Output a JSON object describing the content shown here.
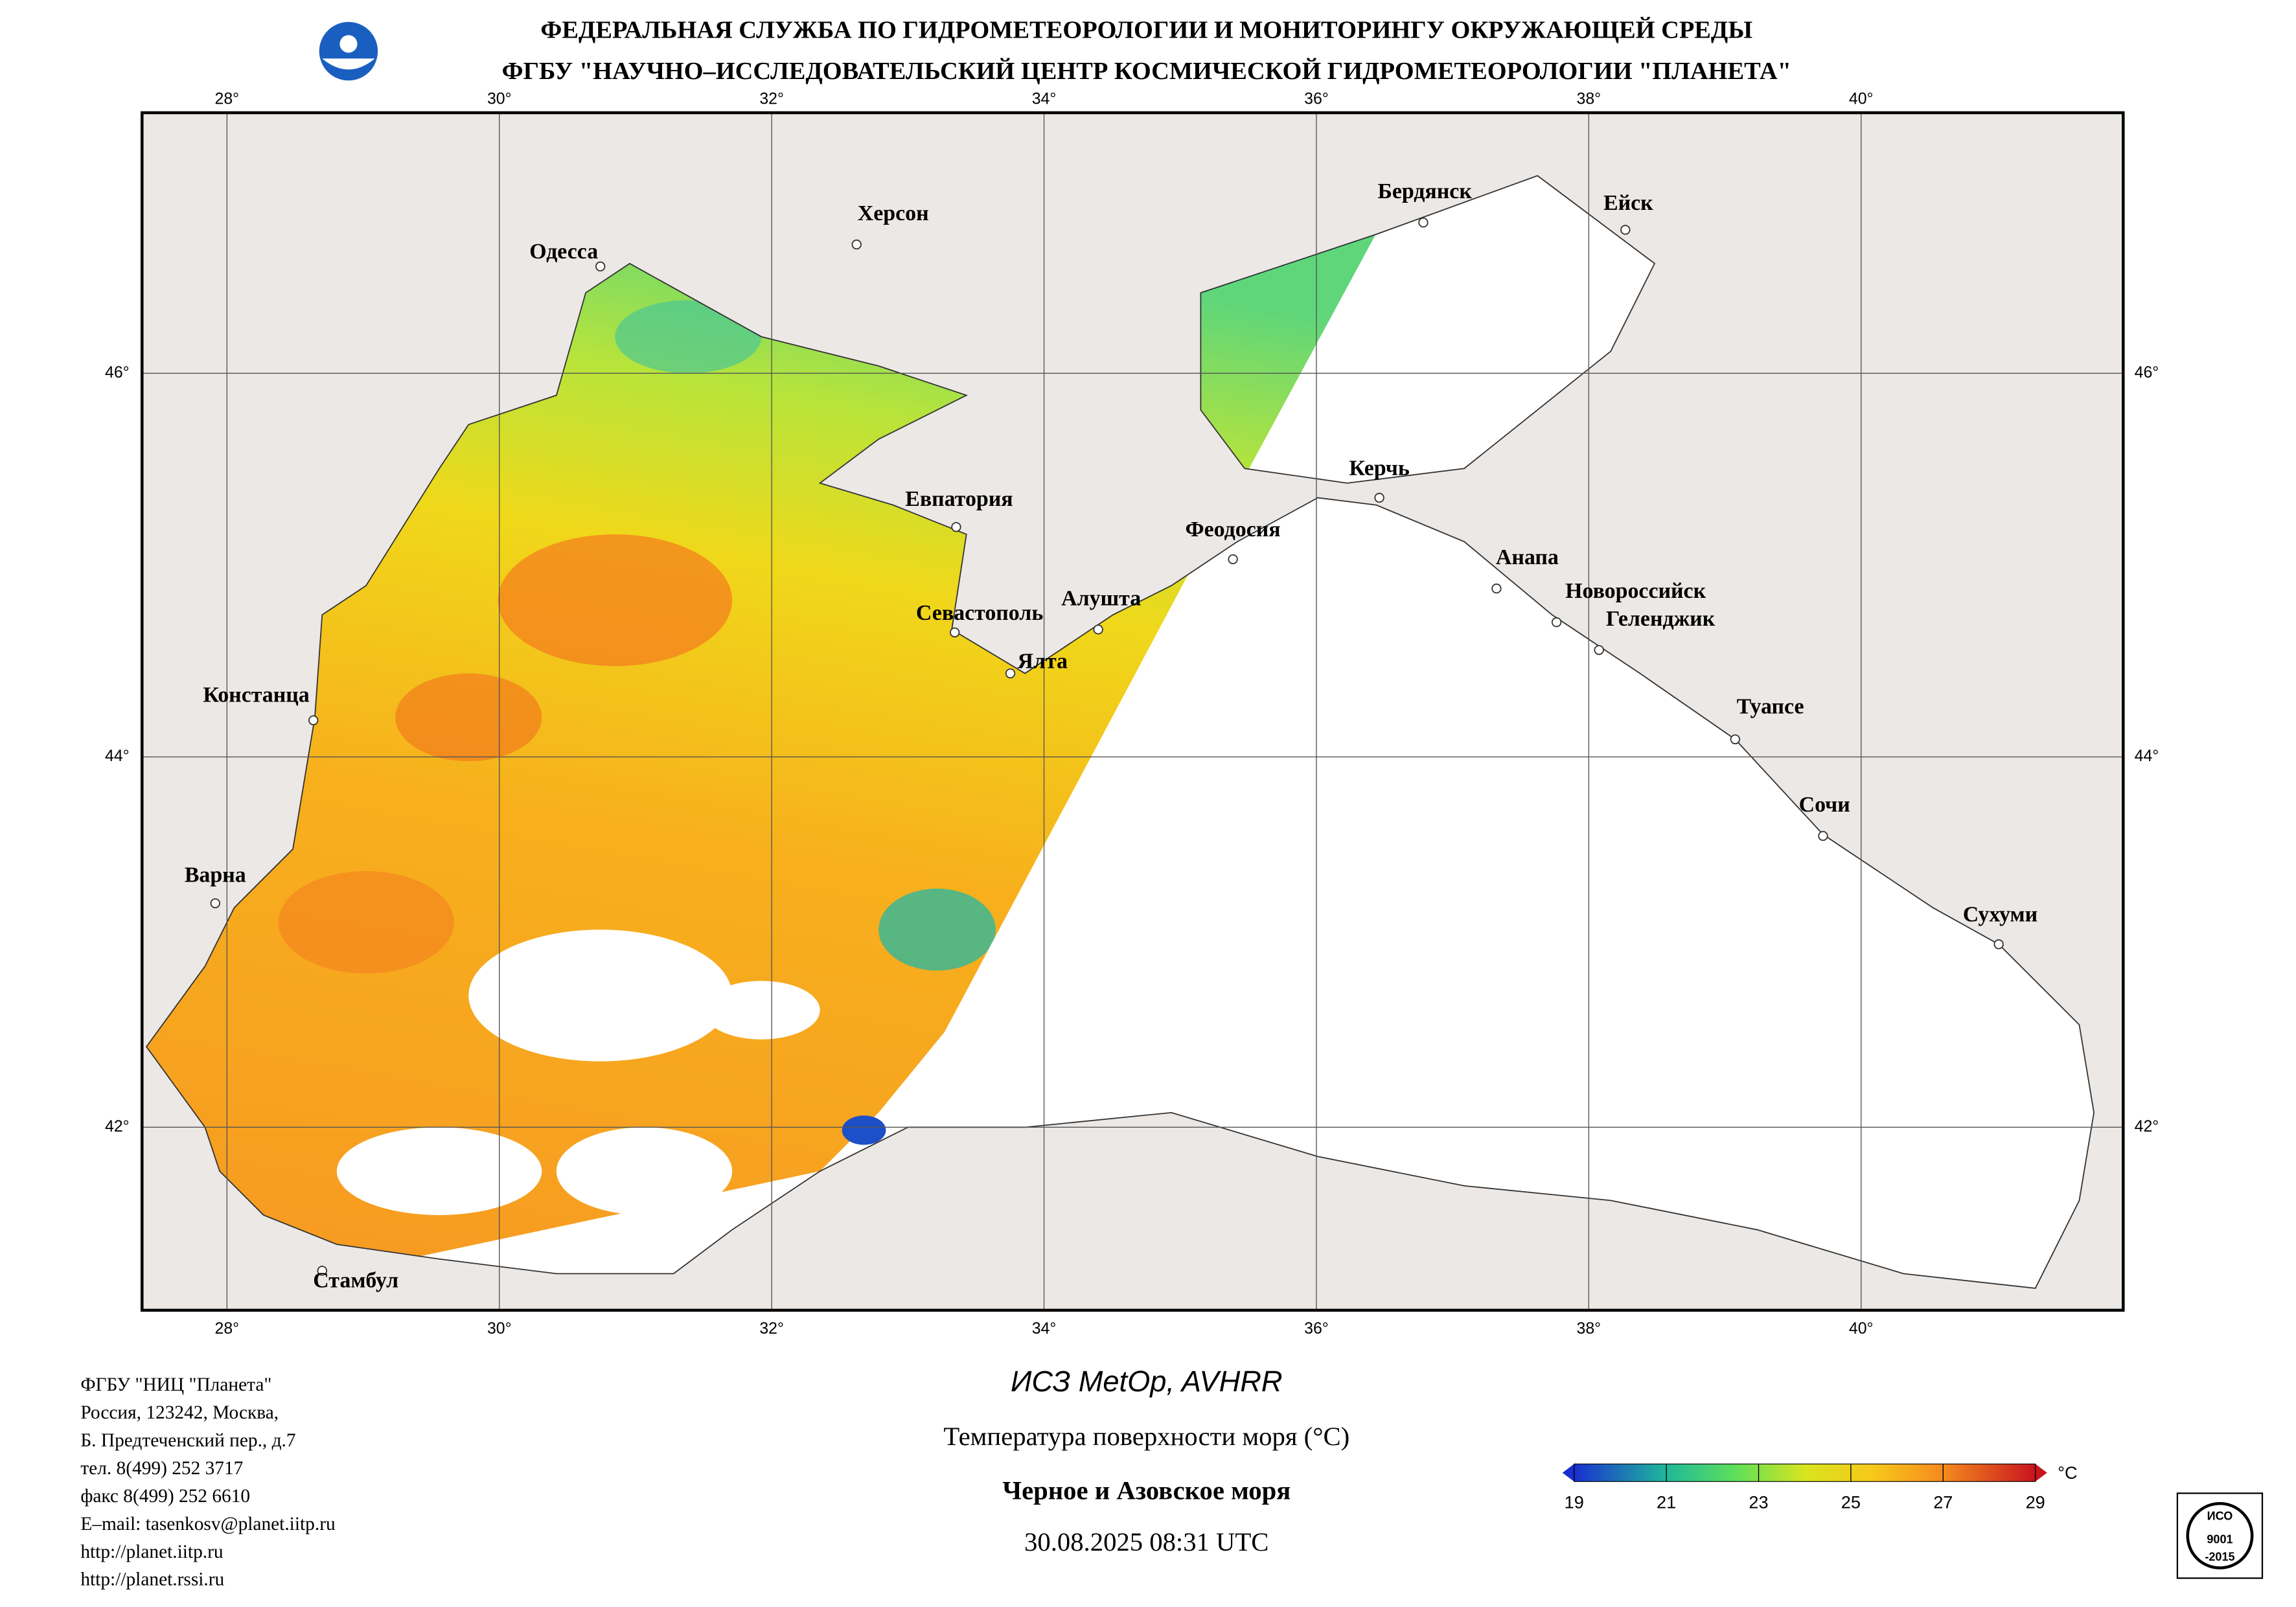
{
  "header": {
    "line1": "ФЕДЕРАЛЬНАЯ СЛУЖБА ПО ГИДРОМЕТЕОРОЛОГИИ И МОНИТОРИНГУ ОКРУЖАЮЩЕЙ СРЕДЫ",
    "line2": "ФГБУ \"НАУЧНО–ИССЛЕДОВАТЕЛЬСКИЙ ЦЕНТР КОСМИЧЕСКОЙ ГИДРОМЕТЕОРОЛОГИИ \"ПЛАНЕТА\""
  },
  "map": {
    "lon_ticks": [
      "28°",
      "30°",
      "32°",
      "34°",
      "36°",
      "38°",
      "40°"
    ],
    "lat_ticks": [
      "46°",
      "44°",
      "42°"
    ],
    "cities": [
      "Одесса",
      "Херсон",
      "Бердянск",
      "Ейск",
      "Евпатория",
      "Керчь",
      "Феодосия",
      "Анапа",
      "Новороссийск",
      "Геленджик",
      "Севастополь",
      "Алушта",
      "Ялта",
      "Констанца",
      "Туапсе",
      "Сочи",
      "Варна",
      "Сухуми",
      "Стамбул"
    ]
  },
  "footer": {
    "address": [
      "ФГБУ \"НИЦ \"Планета\"",
      "Россия, 123242, Москва,",
      "Б. Предтеченский пер., д.7",
      "тел. 8(499) 252 3717",
      "факс 8(499) 252 6610",
      "E–mail: tasenkosv@planet.iitp.ru",
      "http://planet.iitp.ru",
      "http://planet.rssi.ru"
    ],
    "satellite": "ИСЗ MetOp, AVHRR",
    "title": "Температура поверхности моря (°C)",
    "region": "Черное и Азовское моря",
    "datetime": "30.08.2025 08:31 UTC",
    "iso": [
      "ИСО",
      "9001",
      "-2015"
    ]
  },
  "colorbar": {
    "ticks": [
      "19",
      "21",
      "23",
      "25",
      "27",
      "29"
    ],
    "unit": "°C"
  }
}
